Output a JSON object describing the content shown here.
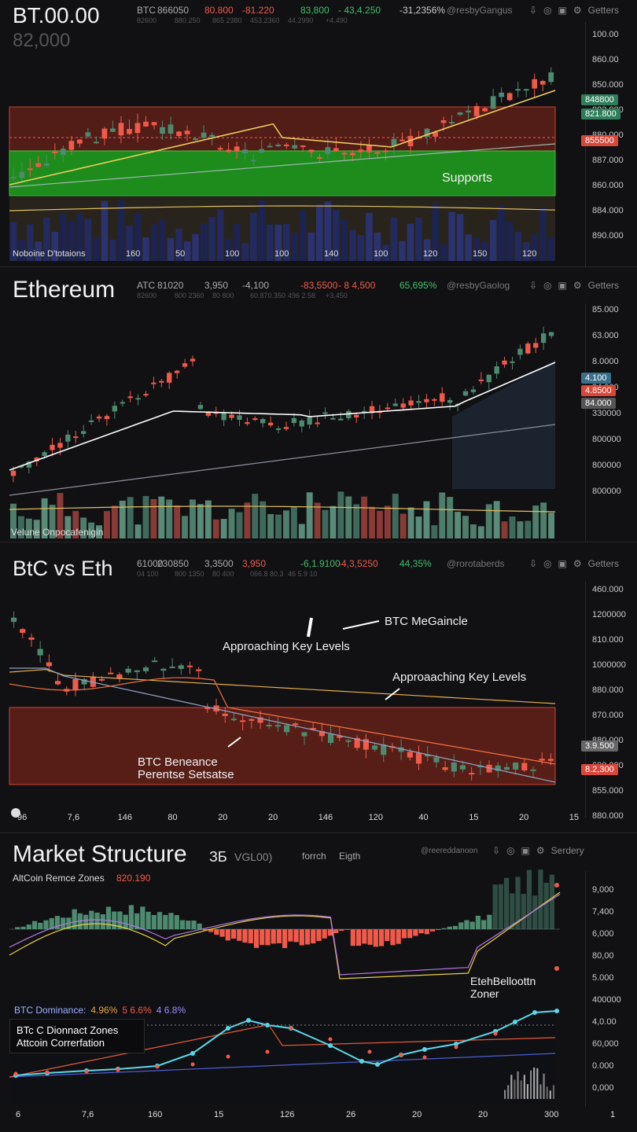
{
  "p1": {
    "title": "BT.00.00",
    "subtitle": "82,000",
    "hdr": [
      {
        "t": "BTC",
        "c": "#aaaaaa"
      },
      {
        "t": "866050",
        "c": "#aaaaaa"
      },
      {
        "t": "80.800",
        "c": "#ef5a4a"
      },
      {
        "t": "-81.220",
        "c": "#ef5a4a"
      },
      {
        "t": "83,800",
        "c": "#3fbf6a"
      },
      {
        "t": "- 43,4.250",
        "c": "#3fbf6a"
      },
      {
        "t": "-31,2356%",
        "c": "#cccccc"
      },
      {
        "t": "@resbyGangus",
        "c": "#777777"
      }
    ],
    "hdr2": [
      "82600",
      "880.250",
      "865 2380",
      "453.2360",
      "44.2990",
      "+4.490"
    ],
    "icons": [
      "⇩",
      "◎",
      "▣",
      "⚙",
      "Getters"
    ],
    "yaxis": [
      "100.00",
      "860.00",
      "850.000",
      "883.000",
      "880.000",
      "887.000",
      "860.000",
      "884.000",
      "890.000"
    ],
    "tags": [
      {
        "t": "848800",
        "c": "#2e7d5b"
      },
      {
        "t": "821.800",
        "c": "#2e7d5b"
      },
      {
        "t": "855500",
        "c": "#d8473a"
      }
    ],
    "xlabels": [
      "Noboine D'totaions",
      "160",
      "50",
      "100",
      "100",
      "140",
      "100",
      "120",
      "150",
      "120"
    ],
    "support_label": "Supports"
  },
  "p2": {
    "title": "Ethereum",
    "hdr": [
      {
        "t": "ATC",
        "c": "#aaaaaa"
      },
      {
        "t": "81020",
        "c": "#aaaaaa"
      },
      {
        "t": "3,950",
        "c": "#aaaaaa"
      },
      {
        "t": "-4,100",
        "c": "#aaaaaa"
      },
      {
        "t": "-83,5500",
        "c": "#ef5a4a"
      },
      {
        "t": "- 8 4,500",
        "c": "#ef5a4a"
      },
      {
        "t": "65,695%",
        "c": "#3fbf6a"
      },
      {
        "t": "@resbyGaolog",
        "c": "#777777"
      }
    ],
    "hdr2": [
      "82600",
      "800 2360",
      "80 800",
      "60.870.350",
      "496 2.58",
      "+3,450"
    ],
    "icons": [
      "⇩",
      "◎",
      "▣",
      "⚙",
      "Getters"
    ],
    "yaxis": [
      "85.000",
      "63.000",
      "8.0000",
      "84.000",
      "330000",
      "800000",
      "800000",
      "800000"
    ],
    "tags": [
      {
        "t": "4.100",
        "c": "#3a6f8a"
      },
      {
        "t": "4.8500",
        "c": "#d8473a"
      },
      {
        "t": "84.000",
        "c": "#555555"
      }
    ],
    "vol_label": "Velune Onpocafenigin"
  },
  "p3": {
    "title": "BtC vs Eth",
    "hdr": [
      {
        "t": "61000",
        "c": "#aaaaaa"
      },
      {
        "t": "230850",
        "c": "#aaaaaa"
      },
      {
        "t": "3,3500",
        "c": "#aaaaaa"
      },
      {
        "t": "3,950",
        "c": "#ef5a4a"
      },
      {
        "t": "-6,1.9100",
        "c": "#3fbf6a"
      },
      {
        "t": "-4,3,5250",
        "c": "#ef5a4a"
      },
      {
        "t": "44,35%",
        "c": "#3fbf6a"
      },
      {
        "t": "@rorotaberds",
        "c": "#777777"
      }
    ],
    "hdr2": [
      "04 100",
      "800 1350",
      "80 400",
      "066.8 80.3",
      "46 5.9 10"
    ],
    "icons": [
      "⇩",
      "◎",
      "▣",
      "⚙",
      "Getters"
    ],
    "yaxis": [
      "460.000",
      "1200000",
      "810.000",
      "1000000",
      "880.000",
      "870.000",
      "880.000",
      "600.000",
      "855.000",
      "880.000"
    ],
    "tags": [
      {
        "t": "3.9.500",
        "c": "#666666"
      },
      {
        "t": "8.2,300",
        "c": "#d8473a"
      }
    ],
    "xlabels": [
      "96",
      "7,6",
      "146",
      "80",
      "20",
      "20",
      "146",
      "120",
      "40",
      "15",
      "20",
      "15"
    ],
    "ann1": "BTC MeGaincle",
    "ann2": "Approaching Key Levels",
    "ann3": "Approaaching Key Levels",
    "ann4a": "BTC Beneance",
    "ann4b": "Perentse Setsatse"
  },
  "p4": {
    "title": "Market Structure",
    "title_extra": [
      "ЗБ",
      "VGL00)",
      "forrch",
      "Eigth"
    ],
    "hdr_right": "@reereddanoon",
    "icons": [
      "⇩",
      "◎",
      "▣",
      "⚙",
      "Serdery"
    ],
    "sub_label": "AltCoin Remce Zones",
    "sub_value": "820.190",
    "yaxis_top": [
      "9,000",
      "7,400",
      "6,000",
      "80,00",
      "5.000"
    ],
    "yaxis_bot": [
      "400000",
      "4,0.00",
      "60,000",
      "0.000",
      "0,000"
    ],
    "side_label_a": "EtehBelloottn",
    "side_label_b": "Zoner",
    "legend": [
      {
        "t": "BTC Dominance:",
        "c": "#9bb3ff"
      },
      {
        "t": "4.96%",
        "c": "#e8a33d"
      },
      {
        "t": "5 6.6%",
        "c": "#ef5a4a"
      },
      {
        "t": "4 6.8%",
        "c": "#9b8cff"
      }
    ],
    "box_a": "BTc C Dionnact Zones",
    "box_b": "Attcoin Correrfation",
    "xlabels": [
      "6",
      "7,6",
      "160",
      "15",
      "126",
      "26",
      "20",
      "20",
      "300",
      "1"
    ]
  },
  "colors": {
    "up": "#4d8a6f",
    "down": "#ef5a4a",
    "resistance": "#5a1f18",
    "support": "#1f9a1f",
    "bg": "#111114"
  }
}
